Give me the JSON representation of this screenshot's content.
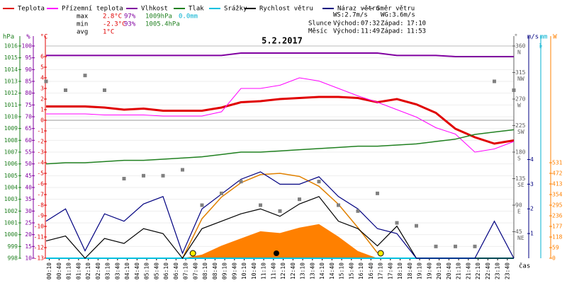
{
  "chart_data": {
    "type": "line",
    "title": "5.2.2017",
    "x_label": "čas",
    "xlim": [
      0,
      1440
    ],
    "x": [
      0,
      60,
      120,
      180,
      240,
      300,
      360,
      420,
      480,
      540,
      600,
      660,
      720,
      780,
      840,
      900,
      960,
      1020,
      1080,
      1140,
      1200,
      1260,
      1320,
      1380,
      1440
    ],
    "xticks": [
      {
        "value": 10,
        "label": "00:10"
      },
      {
        "value": 40,
        "label": "00:40"
      },
      {
        "value": 70,
        "label": "01:10"
      },
      {
        "value": 100,
        "label": "01:40"
      },
      {
        "value": 130,
        "label": "02:10"
      },
      {
        "value": 160,
        "label": "02:40"
      },
      {
        "value": 190,
        "label": "03:10"
      },
      {
        "value": 220,
        "label": "03:40"
      },
      {
        "value": 250,
        "label": "04:10"
      },
      {
        "value": 280,
        "label": "04:40"
      },
      {
        "value": 310,
        "label": "05:10"
      },
      {
        "value": 340,
        "label": "05:40"
      },
      {
        "value": 370,
        "label": "06:10"
      },
      {
        "value": 400,
        "label": "06:40"
      },
      {
        "value": 430,
        "label": "07:10"
      },
      {
        "value": 460,
        "label": "07:40"
      },
      {
        "value": 490,
        "label": "08:10"
      },
      {
        "value": 520,
        "label": "08:40"
      },
      {
        "value": 550,
        "label": "09:10"
      },
      {
        "value": 580,
        "label": "09:40"
      },
      {
        "value": 610,
        "label": "10:10"
      },
      {
        "value": 640,
        "label": "10:40"
      },
      {
        "value": 670,
        "label": "11:10"
      },
      {
        "value": 700,
        "label": "11:40"
      },
      {
        "value": 730,
        "label": "12:10"
      },
      {
        "value": 760,
        "label": "12:40"
      },
      {
        "value": 790,
        "label": "13:10"
      },
      {
        "value": 820,
        "label": "13:40"
      },
      {
        "value": 850,
        "label": "14:10"
      },
      {
        "value": 880,
        "label": "14:40"
      },
      {
        "value": 910,
        "label": "15:10"
      },
      {
        "value": 940,
        "label": "15:40"
      },
      {
        "value": 970,
        "label": "16:10"
      },
      {
        "value": 1000,
        "label": "16:40"
      },
      {
        "value": 1030,
        "label": "17:10"
      },
      {
        "value": 1060,
        "label": "17:40"
      },
      {
        "value": 1090,
        "label": "18:10"
      },
      {
        "value": 1120,
        "label": "18:40"
      },
      {
        "value": 1150,
        "label": "19:10"
      },
      {
        "value": 1180,
        "label": "19:40"
      },
      {
        "value": 1210,
        "label": "20:10"
      },
      {
        "value": 1240,
        "label": "20:40"
      },
      {
        "value": 1270,
        "label": "21:10"
      },
      {
        "value": 1300,
        "label": "21:40"
      },
      {
        "value": 1330,
        "label": "22:10"
      },
      {
        "value": 1360,
        "label": "22:40"
      },
      {
        "value": 1390,
        "label": "23:10"
      },
      {
        "value": 1420,
        "label": "23:40"
      }
    ],
    "axes": {
      "hpa": {
        "label": "hPa",
        "color": "#208020",
        "lim": [
          998,
          1016
        ],
        "ticks": [
          998,
          999,
          1000,
          1001,
          1002,
          1003,
          1004,
          1005,
          1006,
          1007,
          1008,
          1009,
          1010,
          1011,
          1012,
          1013,
          1014,
          1015,
          1016
        ]
      },
      "hum": {
        "label": "%",
        "color": "#8000a0",
        "lim": [
          10,
          100
        ],
        "ticks": [
          10,
          15,
          20,
          25,
          30,
          35,
          40,
          45,
          50,
          55,
          60,
          65,
          70,
          75,
          80,
          85,
          90,
          95,
          100
        ]
      },
      "temp": {
        "label": "°C",
        "color": "#e00000",
        "lim": [
          -13,
          7
        ],
        "ticks": [
          -13,
          -12,
          -11,
          -10,
          -9,
          -8,
          -7,
          -6,
          -5,
          -4,
          -3,
          -2,
          -1,
          0,
          1,
          2,
          3,
          4,
          5,
          6
        ]
      },
      "dir": {
        "label": "°",
        "color": "#606060",
        "lim": [
          0,
          360
        ],
        "ticks": [
          45,
          90,
          135,
          180,
          225,
          270,
          315,
          360
        ],
        "compass": [
          "NE",
          "E",
          "SE",
          "S",
          "SW",
          "W",
          "NW",
          "N"
        ]
      },
      "wind": {
        "label": "m/s",
        "color": "#000080",
        "lim": [
          0,
          8.6
        ],
        "ticks": [
          1,
          2,
          3,
          4
        ]
      },
      "mm": {
        "label": "mm",
        "color": "#00b0d0",
        "lim": [
          0,
          1
        ],
        "ticks": [
          1
        ]
      },
      "rad": {
        "label": "W",
        "color": "#ff8000",
        "lim": [
          0,
          1180
        ],
        "ticks": [
          0,
          59,
          118,
          177,
          236,
          295,
          354,
          413,
          472,
          531
        ]
      }
    },
    "series": [
      {
        "name": "Teplota",
        "color": "#e00000",
        "axis": "temp",
        "values": [
          1.3,
          1.3,
          1.3,
          1.2,
          1.0,
          1.1,
          0.9,
          0.9,
          0.9,
          1.2,
          1.7,
          1.8,
          2.0,
          2.1,
          2.2,
          2.2,
          2.1,
          1.7,
          2.0,
          1.5,
          0.7,
          -0.8,
          -1.6,
          -2.2,
          -1.9
        ]
      },
      {
        "name": "Přízemní teplota",
        "color": "#ff00ff",
        "axis": "temp",
        "values": [
          0.6,
          0.6,
          0.6,
          0.5,
          0.5,
          0.5,
          0.4,
          0.4,
          0.4,
          0.8,
          3.0,
          3.0,
          3.3,
          4.0,
          3.7,
          3.0,
          2.3,
          1.7,
          1.0,
          0.3,
          -0.7,
          -1.3,
          -3.0,
          -2.7,
          -2.0
        ]
      },
      {
        "name": "Vlhkost",
        "color": "#8000a0",
        "axis": "hum",
        "values": [
          96,
          96,
          96,
          96,
          96,
          96,
          96,
          96,
          96,
          96,
          97,
          97,
          97,
          97,
          97,
          97,
          97,
          97,
          96,
          96,
          96,
          95.5,
          95.5,
          95.5,
          95.5
        ]
      },
      {
        "name": "Tlak",
        "color": "#208020",
        "axis": "hpa",
        "values": [
          1006.0,
          1006.1,
          1006.1,
          1006.2,
          1006.3,
          1006.3,
          1006.4,
          1006.5,
          1006.6,
          1006.8,
          1007.0,
          1007.0,
          1007.1,
          1007.2,
          1007.3,
          1007.4,
          1007.5,
          1007.5,
          1007.6,
          1007.7,
          1007.9,
          1008.1,
          1008.5,
          1008.7,
          1008.9
        ]
      },
      {
        "name": "Srážky",
        "color": "#00c0e0",
        "axis": "mm",
        "values": [
          0,
          0,
          0,
          0,
          0,
          0,
          0,
          0,
          0,
          0,
          0,
          0,
          0,
          0,
          0,
          0,
          0,
          0,
          0,
          0,
          0,
          0,
          0,
          0,
          0
        ]
      },
      {
        "name": "Rychlost větru",
        "color": "#000000",
        "axis": "wind",
        "values": [
          0.7,
          0.9,
          0,
          0.8,
          0.6,
          1.2,
          1.0,
          0,
          1.2,
          1.5,
          1.8,
          2.0,
          1.7,
          2.2,
          2.5,
          1.5,
          1.2,
          0.5,
          1.3,
          0,
          0,
          0,
          0,
          0,
          0
        ]
      },
      {
        "name": "Náraz větru",
        "color": "#000080",
        "axis": "wind",
        "values": [
          1.5,
          2.0,
          0.3,
          1.8,
          1.5,
          2.2,
          2.5,
          0.2,
          2.0,
          2.6,
          3.2,
          3.5,
          3.0,
          3.0,
          3.3,
          2.5,
          2.0,
          1.2,
          1.0,
          0,
          0,
          0,
          0,
          1.5,
          0
        ]
      },
      {
        "name": "Směr větru",
        "color": "#808080",
        "axis": "dir",
        "style": "points",
        "values": [
          300,
          285,
          310,
          285,
          135,
          140,
          140,
          150,
          90,
          110,
          130,
          90,
          80,
          100,
          130,
          90,
          80,
          110,
          60,
          55,
          20,
          20,
          20,
          300,
          285
        ]
      }
    ],
    "radiation": {
      "color": "#ff8000",
      "axis": "rad",
      "values": [
        null,
        null,
        null,
        null,
        null,
        null,
        null,
        0,
        20,
        70,
        110,
        150,
        140,
        170,
        190,
        120,
        40,
        0,
        null,
        null,
        null,
        null,
        null,
        null,
        null
      ]
    },
    "radiation_max": {
      "color": "#e08000",
      "axis": "rad",
      "values": [
        null,
        null,
        null,
        null,
        null,
        null,
        null,
        0,
        220,
        340,
        420,
        465,
        472,
        455,
        400,
        300,
        170,
        30,
        null,
        null,
        null,
        null,
        null,
        null,
        null
      ]
    },
    "stats": [
      {
        "label": "max",
        "items": [
          {
            "text": "2.8°C",
            "color": "#e00000"
          },
          {
            "text": "97%",
            "color": "#8000a0"
          },
          {
            "text": "1009hPa",
            "color": "#208020"
          },
          {
            "text": "0.0mm",
            "color": "#00b0d0"
          }
        ]
      },
      {
        "label": "min",
        "items": [
          {
            "text": "-2.3°C",
            "color": "#e00000"
          },
          {
            "text": "93%",
            "color": "#8000a0"
          },
          {
            "text": "1005.4hPa",
            "color": "#208020"
          }
        ]
      },
      {
        "label": "avg",
        "items": [
          {
            "text": "1°C",
            "color": "#e00000"
          }
        ]
      }
    ],
    "wind_stats": [
      "WS:2.7m/s",
      "WG:3.6m/s"
    ],
    "sun": {
      "label": "Slunce",
      "rise_label": "Východ:",
      "rise": "07:32",
      "set_label": "Západ:",
      "set": "17:10"
    },
    "moon": {
      "label": "Měsíc",
      "rise_label": "Východ:",
      "rise": "11:49",
      "set_label": "Západ:",
      "set": "11:53"
    }
  }
}
